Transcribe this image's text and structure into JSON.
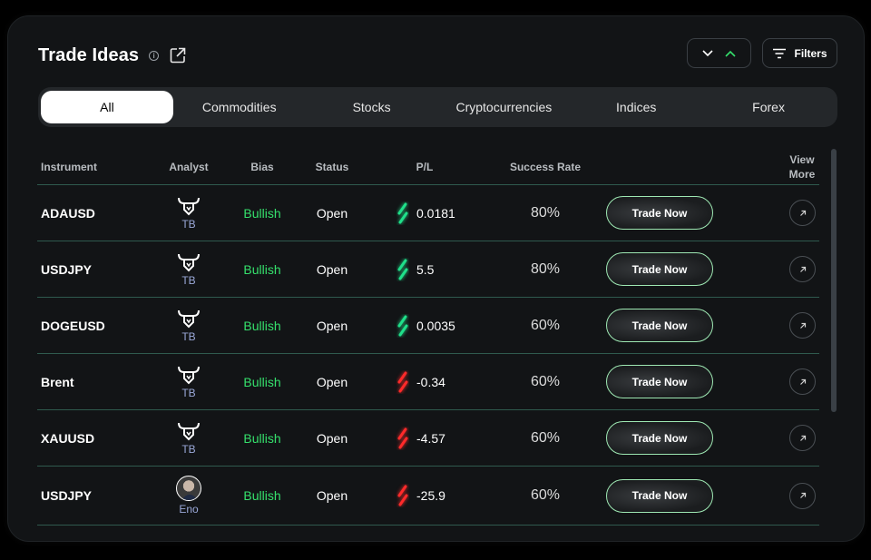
{
  "header": {
    "title": "Trade Ideas",
    "info_glyph": "i",
    "filters_label": "Filters"
  },
  "tabs": [
    {
      "label": "All",
      "active": true
    },
    {
      "label": "Commodities",
      "active": false
    },
    {
      "label": "Stocks",
      "active": false
    },
    {
      "label": "Cryptocurrencies",
      "active": false
    },
    {
      "label": "Indices",
      "active": false
    },
    {
      "label": "Forex",
      "active": false
    }
  ],
  "columns": {
    "instrument": "Instrument",
    "analyst": "Analyst",
    "bias": "Bias",
    "status": "Status",
    "pl": "P/L",
    "success_rate": "Success Rate",
    "view_more_line1": "View",
    "view_more_line2": "More"
  },
  "rows": [
    {
      "instrument": "ADAUSD",
      "analyst": "TB",
      "analyst_avatar": "bull-logo-icon",
      "bias": "Bullish",
      "status": "Open",
      "pl": "0.0181",
      "pl_trend": "positive",
      "success_rate": "80%",
      "action": "Trade Now"
    },
    {
      "instrument": "USDJPY",
      "analyst": "TB",
      "analyst_avatar": "bull-logo-icon",
      "bias": "Bullish",
      "status": "Open",
      "pl": "5.5",
      "pl_trend": "positive",
      "success_rate": "80%",
      "action": "Trade Now"
    },
    {
      "instrument": "DOGEUSD",
      "analyst": "TB",
      "analyst_avatar": "bull-logo-icon",
      "bias": "Bullish",
      "status": "Open",
      "pl": "0.0035",
      "pl_trend": "positive",
      "success_rate": "60%",
      "action": "Trade Now"
    },
    {
      "instrument": "Brent",
      "analyst": "TB",
      "analyst_avatar": "bull-logo-icon",
      "bias": "Bullish",
      "status": "Open",
      "pl": "-0.34",
      "pl_trend": "negative",
      "success_rate": "60%",
      "action": "Trade Now"
    },
    {
      "instrument": "XAUUSD",
      "analyst": "TB",
      "analyst_avatar": "bull-logo-icon",
      "bias": "Bullish",
      "status": "Open",
      "pl": "-4.57",
      "pl_trend": "negative",
      "success_rate": "60%",
      "action": "Trade Now"
    },
    {
      "instrument": "USDJPY",
      "analyst": "Eno",
      "analyst_avatar": "person-photo",
      "bias": "Bullish",
      "status": "Open",
      "pl": "-25.9",
      "pl_trend": "negative",
      "success_rate": "60%",
      "action": "Trade Now"
    }
  ],
  "colors": {
    "background": "#121416",
    "bullish": "#35e06c",
    "positive_pl": "#1fe08a",
    "negative_pl": "#ff2a2a",
    "row_divider": "#2f5a4e",
    "button_border": "#9ee8b3",
    "analyst_name": "#9aa8d8"
  }
}
